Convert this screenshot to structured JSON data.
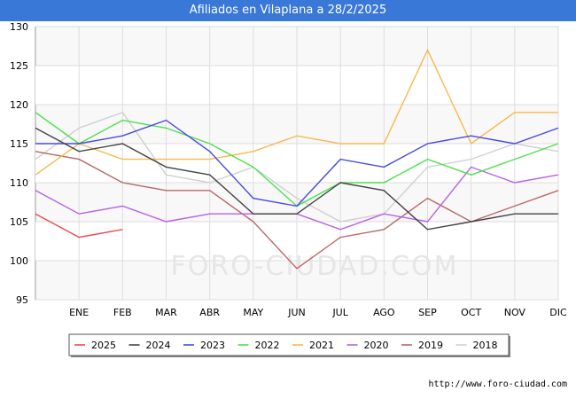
{
  "title": "Afiliados en Vilaplana a 28/2/2025",
  "source": "http://www.foro-ciudad.com",
  "watermark": "FORO-CIUDAD.COM",
  "chart_data": {
    "type": "line",
    "categories": [
      "",
      "ENE",
      "FEB",
      "MAR",
      "ABR",
      "MAY",
      "JUN",
      "JUL",
      "AGO",
      "SEP",
      "OCT",
      "NOV",
      "DIC"
    ],
    "ylim": [
      95,
      130
    ],
    "yticks": [
      95,
      100,
      105,
      110,
      115,
      120,
      125,
      130
    ],
    "grid": true,
    "legend_position": "bottom",
    "series": [
      {
        "name": "2025",
        "color": "#e84c4c",
        "values": [
          106,
          103,
          104,
          null,
          null,
          null,
          null,
          null,
          null,
          null,
          null,
          null,
          null
        ]
      },
      {
        "name": "2024",
        "color": "#444444",
        "values": [
          117,
          114,
          115,
          112,
          111,
          106,
          106,
          110,
          109,
          104,
          105,
          106,
          106
        ]
      },
      {
        "name": "2023",
        "color": "#4848e0",
        "values": [
          115,
          115,
          116,
          118,
          114,
          108,
          107,
          113,
          112,
          115,
          116,
          115,
          117
        ]
      },
      {
        "name": "2022",
        "color": "#4ce04c",
        "values": [
          119,
          115,
          118,
          117,
          115,
          112,
          107,
          110,
          110,
          113,
          111,
          113,
          115
        ]
      },
      {
        "name": "2021",
        "color": "#f8b84c",
        "values": [
          111,
          115,
          113,
          113,
          113,
          114,
          116,
          115,
          115,
          127,
          115,
          119,
          119
        ]
      },
      {
        "name": "2020",
        "color": "#b860e8",
        "values": [
          109,
          106,
          107,
          105,
          106,
          106,
          106,
          104,
          106,
          105,
          112,
          110,
          111
        ]
      },
      {
        "name": "2019",
        "color": "#b86868",
        "values": [
          114,
          113,
          110,
          109,
          109,
          105,
          99,
          103,
          104,
          108,
          105,
          107,
          109
        ]
      },
      {
        "name": "2018",
        "color": "#d0d0d0",
        "values": [
          113,
          117,
          119,
          111,
          110,
          112,
          108,
          105,
          106,
          112,
          113,
          115,
          114
        ]
      }
    ]
  }
}
